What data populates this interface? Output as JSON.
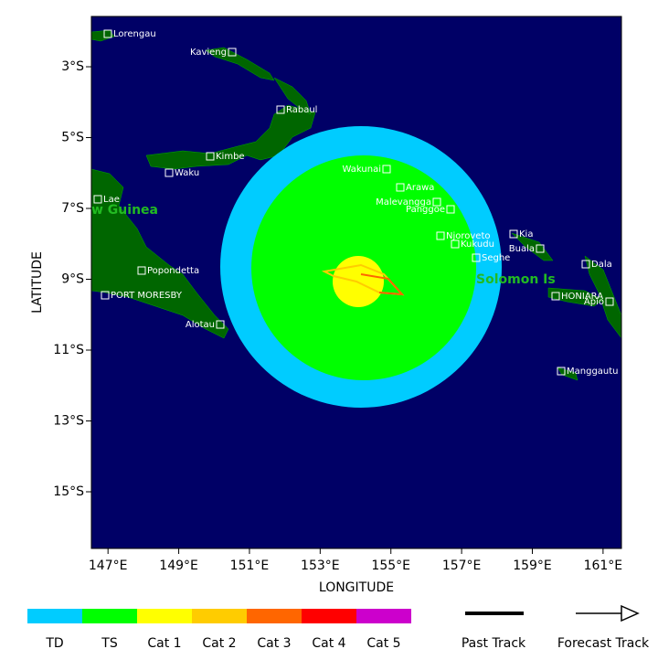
{
  "map": {
    "xlabel": "LONGITUDE",
    "ylabel": "LATITUDE",
    "xlim": [
      146.53,
      161.52
    ],
    "ylim": [
      -16.6,
      -1.58
    ],
    "xticks": [
      {
        "value": 147,
        "label": "147°E"
      },
      {
        "value": 149,
        "label": "149°E"
      },
      {
        "value": 151,
        "label": "151°E"
      },
      {
        "value": 153,
        "label": "153°E"
      },
      {
        "value": 155,
        "label": "155°E"
      },
      {
        "value": 157,
        "label": "157°E"
      },
      {
        "value": 159,
        "label": "159°E"
      },
      {
        "value": 161,
        "label": "161°E"
      }
    ],
    "yticks": [
      {
        "value": -3,
        "label": "3°S"
      },
      {
        "value": -5,
        "label": "5°S"
      },
      {
        "value": -7,
        "label": "7°S"
      },
      {
        "value": -9,
        "label": "9°S"
      },
      {
        "value": -11,
        "label": "11°S"
      },
      {
        "value": -13,
        "label": "13°S"
      },
      {
        "value": -15,
        "label": "15°S"
      }
    ],
    "places": [
      "Lorengau",
      "Kavieng",
      "Rabaul",
      "Kimbe",
      "Waku",
      "Lae",
      "Popondetta",
      "PORT MORESBY",
      "Alotau",
      "Wakunai",
      "Arawa",
      "Malevangga",
      "Panggoe",
      "Njoroveto",
      "Kukudu",
      "Seghe",
      "Kia",
      "Buala",
      "Dala",
      "HONIARA",
      "Apio",
      "Manggautu"
    ],
    "regions": [
      "w Guinea",
      "Solomon Is"
    ]
  },
  "legend": {
    "categories": [
      {
        "name": "TD",
        "color": "#00ccff"
      },
      {
        "name": "TS",
        "color": "#00ff00"
      },
      {
        "name": "Cat 1",
        "color": "#ffff00"
      },
      {
        "name": "Cat 2",
        "color": "#ffcc00"
      },
      {
        "name": "Cat 3",
        "color": "#ff6600"
      },
      {
        "name": "Cat 4",
        "color": "#ff0000"
      },
      {
        "name": "Cat 5",
        "color": "#cc00cc"
      }
    ],
    "past_track": "Past Track",
    "forecast_track": "Forecast Track"
  }
}
